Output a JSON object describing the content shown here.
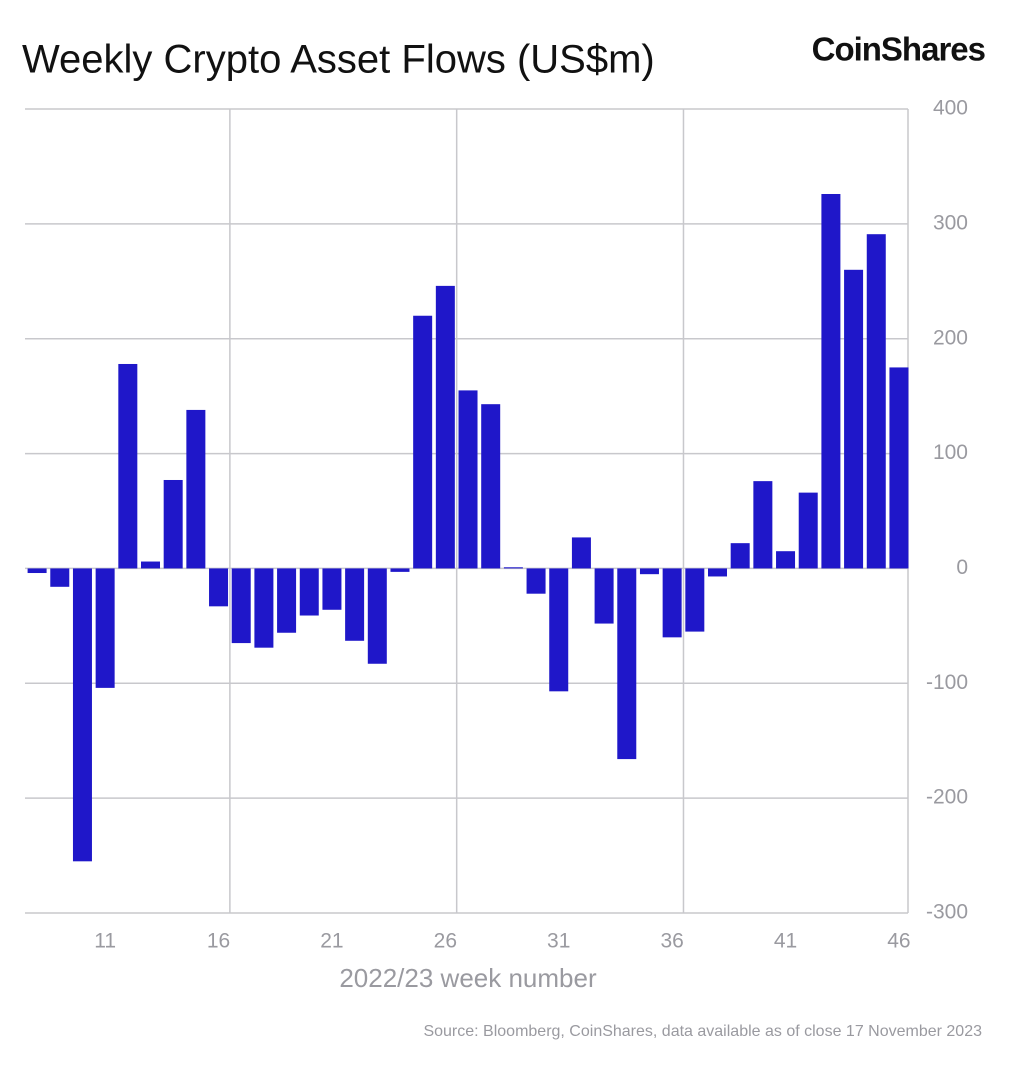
{
  "chart_data": {
    "type": "bar",
    "title": "Weekly Crypto Asset Flows (US$m)",
    "brand": "CoinShares",
    "x_label": "2022/23 week number",
    "source": "Source: Bloomberg, CoinShares, data available as of close 17 November 2023",
    "categories": [
      null,
      null,
      null,
      11,
      null,
      null,
      null,
      null,
      16,
      null,
      null,
      null,
      null,
      21,
      null,
      null,
      null,
      null,
      26,
      null,
      null,
      null,
      null,
      31,
      null,
      null,
      null,
      null,
      36,
      null,
      null,
      null,
      null,
      41,
      null,
      null,
      null,
      null,
      46
    ],
    "values": [
      -4,
      -16,
      -255,
      -104,
      178,
      6,
      77,
      138,
      -33,
      -65,
      -69,
      -56,
      -41,
      -36,
      -63,
      -83,
      -3,
      220,
      246,
      155,
      143,
      1,
      -22,
      -107,
      27,
      -48,
      -166,
      -5,
      -60,
      -55,
      -7,
      22,
      76,
      15,
      66,
      326,
      260,
      291,
      175
    ],
    "color": "#1f17c9",
    "ylim": [
      -300,
      400
    ],
    "yticks": [
      -300,
      -200,
      -100,
      0,
      100,
      200,
      300,
      400
    ],
    "grid": true
  }
}
